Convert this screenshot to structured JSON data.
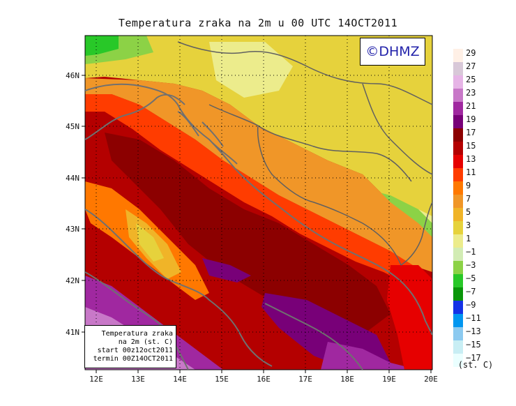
{
  "title": "Temperatura zraka na 2m u 00 UTC 14OCT2011",
  "brand": "©DHMZ",
  "info_box": [
    "Temperatura zraka",
    "na 2m (st. C)",
    "start 00z12oct2011",
    "termin 00Z14OCT2011"
  ],
  "lat_labels": [
    "46N",
    "45N",
    "44N",
    "43N",
    "42N",
    "41N"
  ],
  "lon_labels": [
    "12E",
    "13E",
    "14E",
    "15E",
    "16E",
    "17E",
    "18E",
    "19E",
    "20E"
  ],
  "legend": {
    "levels": [
      "29",
      "27",
      "25",
      "23",
      "21",
      "19",
      "17",
      "15",
      "13",
      "11",
      "9",
      "7",
      "5",
      "3",
      "1",
      "−1",
      "−3",
      "−5",
      "−7",
      "−9",
      "−11",
      "−13",
      "−15",
      "−17"
    ],
    "colors": [
      "#fff0e6",
      "#d8c8d8",
      "#e6b4e6",
      "#c878c8",
      "#a028a0",
      "#780078",
      "#8c0000",
      "#b40000",
      "#e60000",
      "#ff3c00",
      "#ff7800",
      "#f09628",
      "#f0b428",
      "#e6d23c",
      "#ecec8c",
      "#d2ecb4",
      "#8cd246",
      "#28c828",
      "#0a960a",
      "#1432e6",
      "#0096f0",
      "#8ccaf0",
      "#c8eef4",
      "#eaffff"
    ],
    "unit": "(st. C)"
  }
}
